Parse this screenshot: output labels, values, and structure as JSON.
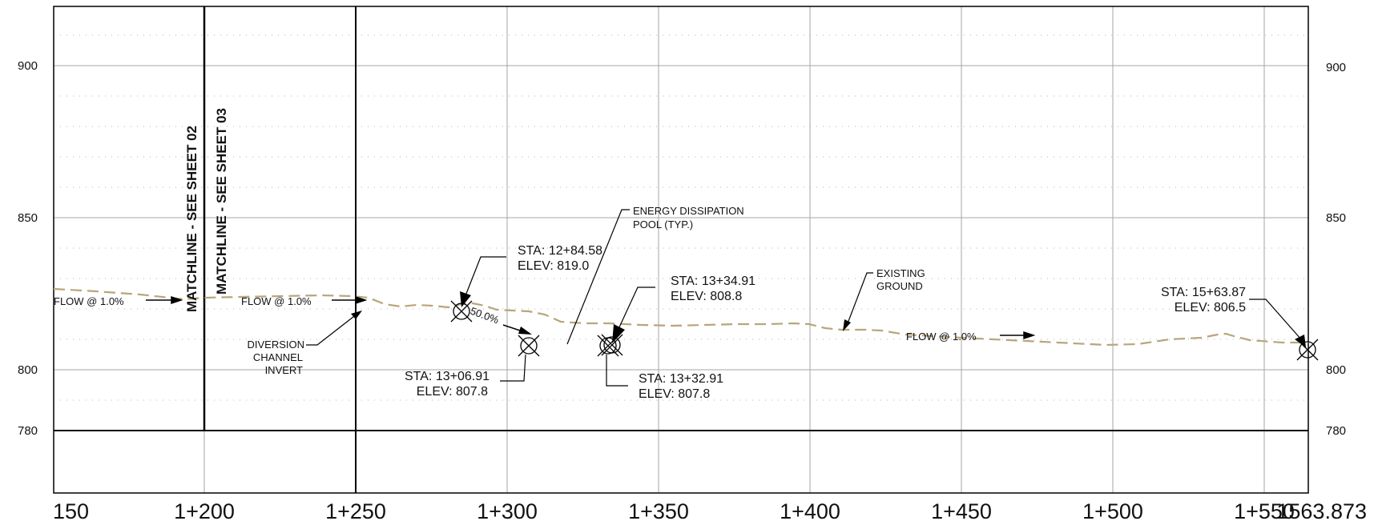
{
  "colors": {
    "background": "#ffffff",
    "grid_major": "#a6a6a6",
    "grid_minor": "#b3b3b3",
    "frame": "#000000",
    "existing_ground": "#b8a57a",
    "text": "#111111"
  },
  "profile": {
    "elevation_labels_left": [
      "900",
      "850",
      "800",
      "780"
    ],
    "elevation_labels_right": [
      "900",
      "850",
      "800",
      "780"
    ],
    "station_labels": [
      "150",
      "1+200",
      "1+250",
      "1+300",
      "1+350",
      "1+400",
      "1+450",
      "1+500",
      "1+550",
      "1563.873"
    ],
    "matchlines": [
      "MATCHLINE - SEE SHEET 02",
      "MATCHLINE - SEE SHEET 03"
    ],
    "flow_labels": [
      "FLOW @ 1.0%",
      "FLOW @ 1.0%",
      "FLOW @ 1.0%"
    ],
    "slope_label": "50.0%",
    "callouts": {
      "diversion": [
        "DIVERSION",
        "CHANNEL",
        "INVERT"
      ],
      "energy_pool": [
        "ENERGY DISSIPATION",
        "POOL (TYP.)"
      ],
      "existing_ground": [
        "EXISTING",
        "GROUND"
      ],
      "points": [
        {
          "sta": "STA: 12+84.58",
          "elev": "ELEV: 819.0"
        },
        {
          "sta": "STA: 13+06.91",
          "elev": "ELEV: 807.8"
        },
        {
          "sta": "STA: 13+34.91",
          "elev": "ELEV: 808.8"
        },
        {
          "sta": "STA: 13+32.91",
          "elev": "ELEV: 807.8"
        },
        {
          "sta": "STA: 15+63.87",
          "elev": "ELEV: 806.5"
        }
      ]
    }
  }
}
